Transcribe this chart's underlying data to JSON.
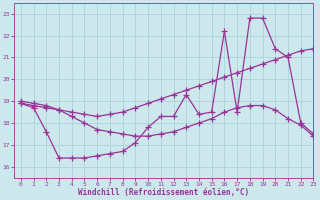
{
  "xlabel": "Windchill (Refroidissement éolien,°C)",
  "bg_color": "#cce8ec",
  "line_color": "#993399",
  "grid_color": "#aad4d8",
  "xlim": [
    -0.5,
    23
  ],
  "ylim": [
    15.5,
    23.5
  ],
  "xticks": [
    0,
    1,
    2,
    3,
    4,
    5,
    6,
    7,
    8,
    9,
    10,
    11,
    12,
    13,
    14,
    15,
    16,
    17,
    18,
    19,
    20,
    21,
    22,
    23
  ],
  "yticks": [
    16,
    17,
    18,
    19,
    20,
    21,
    22,
    23
  ],
  "curve1_x": [
    0,
    1,
    2,
    3,
    4,
    5,
    6,
    7,
    8,
    9,
    10,
    11,
    12,
    13,
    14,
    15,
    16,
    17,
    18,
    19,
    20,
    21,
    22,
    23
  ],
  "curve1_y": [
    18.9,
    18.7,
    17.6,
    16.4,
    16.4,
    16.4,
    16.5,
    16.6,
    16.7,
    17.1,
    17.8,
    18.3,
    18.3,
    19.3,
    18.4,
    18.5,
    22.2,
    18.5,
    22.8,
    22.8,
    21.4,
    21.0,
    18.0,
    17.5
  ],
  "curve2_x": [
    0,
    1,
    2,
    3,
    4,
    5,
    6,
    7,
    8,
    9,
    10,
    11,
    12,
    13,
    14,
    15,
    16,
    17,
    18,
    19,
    20,
    21,
    22,
    23
  ],
  "curve2_y": [
    18.9,
    18.8,
    18.7,
    18.6,
    18.5,
    18.4,
    18.3,
    18.4,
    18.5,
    18.7,
    18.9,
    19.1,
    19.3,
    19.5,
    19.7,
    19.9,
    20.1,
    20.3,
    20.5,
    20.7,
    20.9,
    21.1,
    21.3,
    21.4
  ],
  "curve3_x": [
    0,
    1,
    2,
    3,
    4,
    5,
    6,
    7,
    8,
    9,
    10,
    11,
    12,
    13,
    14,
    15,
    16,
    17,
    18,
    19,
    20,
    21,
    22,
    23
  ],
  "curve3_y": [
    19.0,
    18.9,
    18.8,
    18.6,
    18.3,
    18.0,
    17.7,
    17.6,
    17.5,
    17.4,
    17.4,
    17.5,
    17.6,
    17.8,
    18.0,
    18.2,
    18.5,
    18.7,
    18.8,
    18.8,
    18.6,
    18.2,
    17.9,
    17.4
  ]
}
